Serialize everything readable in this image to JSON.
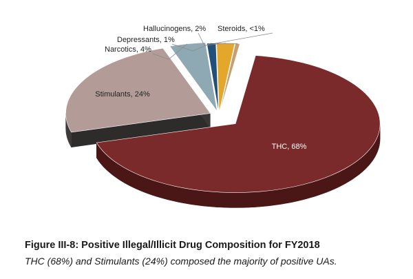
{
  "caption": {
    "title": "Figure III-8:  Positive Illegal/Illicit Drug Composition for FY2018",
    "subtitle": "THC (68%) and Stimulants (24%) composed the majority of positive UAs."
  },
  "chart_data": {
    "type": "pie",
    "style": "3d-exploded",
    "title": "",
    "slices": [
      {
        "label": "THC, 68%",
        "category": "THC",
        "value": 68,
        "color": "#7a2a2a",
        "dark": "#4a1616"
      },
      {
        "label": "Stimulants, 24%",
        "category": "Stimulants",
        "value": 24,
        "color": "#b39c98",
        "dark": "#3e3a3a"
      },
      {
        "label": "Narcotics, 4%",
        "category": "Narcotics",
        "value": 4,
        "color": "#8fa9b4",
        "dark": "#5d737c"
      },
      {
        "label": "Depressants, 1%",
        "category": "Depressants",
        "value": 1,
        "color": "#23507a",
        "dark": "#15324e"
      },
      {
        "label": "Hallucinogens, 2%",
        "category": "Hallucinogens",
        "value": 2,
        "color": "#e3a72c",
        "dark": "#a5761b"
      },
      {
        "label": "Steroids, <1%",
        "category": "Steroids",
        "value": 0.5,
        "color": "#c5a070",
        "dark": "#8a6e4a"
      }
    ]
  }
}
